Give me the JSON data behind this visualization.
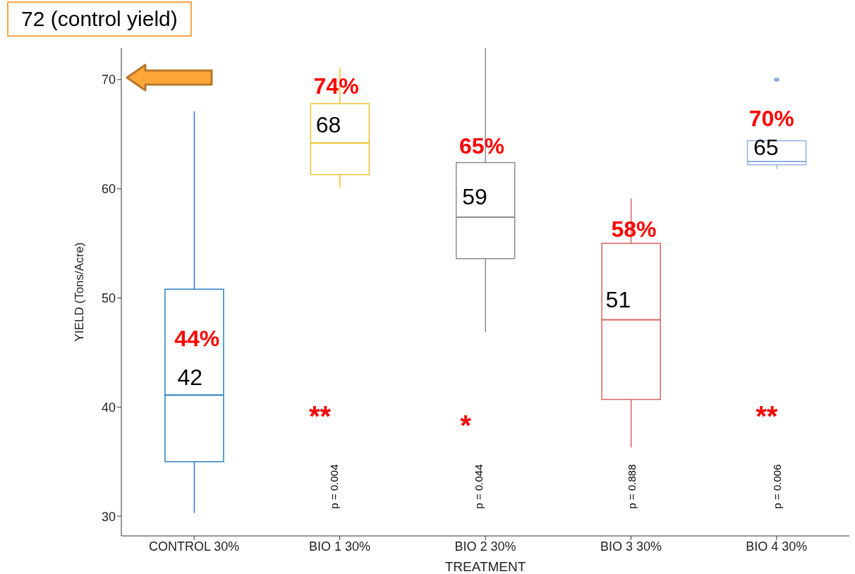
{
  "chart_data": {
    "type": "box",
    "xlabel": "TREATMENT",
    "ylabel": "YIELD (Tons/Acre)",
    "categories": [
      "CONTROL 30%",
      "BIO 1 30%",
      "BIO 2 30%",
      "BIO 3 30%",
      "BIO 4 30%"
    ],
    "colors": [
      "#2a7fc4",
      "#efc12a",
      "#8c8c8c",
      "#d9605c",
      "#8fb0e0"
    ],
    "boxes": [
      {
        "low": 30.3,
        "q1": 35.0,
        "median": 41.1,
        "q3": 50.8,
        "high": 67.1
      },
      {
        "low": 60.1,
        "q1": 61.3,
        "median": 64.2,
        "q3": 67.8,
        "high": 71.1
      },
      {
        "low": 46.9,
        "q1": 53.6,
        "median": 57.4,
        "q3": 62.4,
        "high": 73.1
      },
      {
        "low": 36.3,
        "q1": 40.7,
        "median": 48.0,
        "q3": 55.0,
        "high": 59.1
      },
      {
        "low": 61.8,
        "q1": 62.2,
        "median": 62.5,
        "q3": 64.4,
        "high": 64.4,
        "outliers": [
          70
        ]
      }
    ],
    "ylim": [
      28.2,
      72.9
    ],
    "yticks": [
      30,
      40,
      50,
      60,
      70
    ],
    "annotations": [
      "72 (control yield)",
      "44%",
      "74%",
      "65%",
      "58%",
      "70%",
      "42",
      "68",
      "59",
      "51",
      "65",
      "**",
      "*",
      "**",
      "p = 0.004",
      "p = 0.044",
      "p = 0.888",
      "p = 0.006"
    ]
  }
}
